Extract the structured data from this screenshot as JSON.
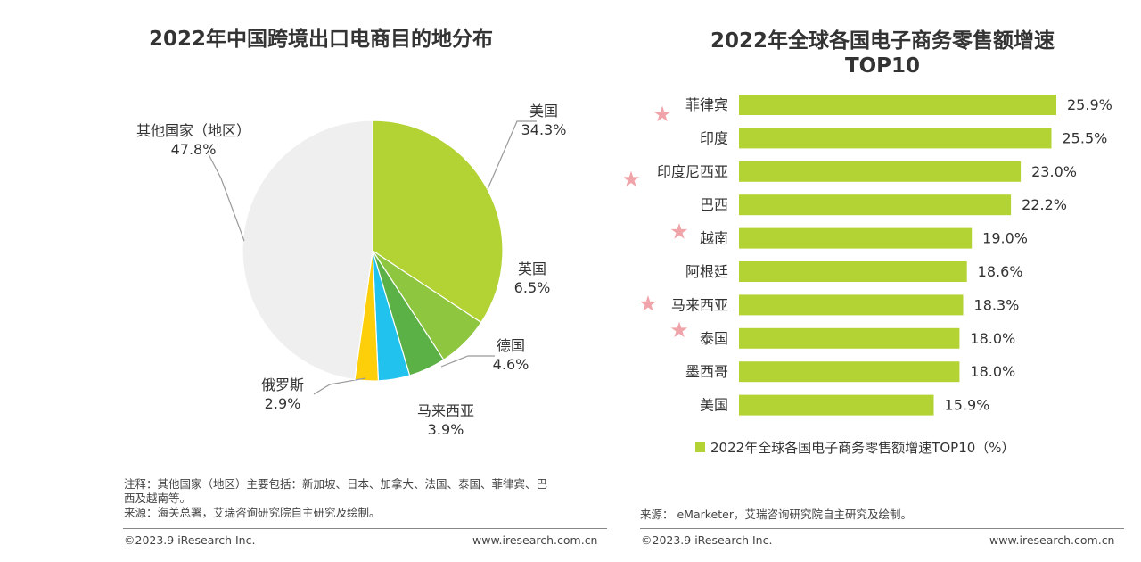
{
  "colors": {
    "bar": "#b3d334",
    "star": "#f0a3a8",
    "leader": "#999999"
  },
  "chart_data": [
    {
      "type": "pie",
      "title": "2022年中国跨境出口电商目的地分布",
      "slices": [
        {
          "label": "美国",
          "value": 34.3,
          "value_label": "34.3%",
          "color": "#b3d334"
        },
        {
          "label": "英国",
          "value": 6.5,
          "value_label": "6.5%",
          "color": "#8ec63f"
        },
        {
          "label": "德国",
          "value": 4.6,
          "value_label": "4.6%",
          "color": "#5bb046"
        },
        {
          "label": "马来西亚",
          "value": 3.9,
          "value_label": "3.9%",
          "color": "#21c3ee"
        },
        {
          "label": "俄罗斯",
          "value": 2.9,
          "value_label": "2.9%",
          "color": "#fccf0a"
        },
        {
          "label": "其他国家（地区）",
          "value": 47.8,
          "value_label": "47.8%",
          "color": "#efefef"
        }
      ]
    },
    {
      "type": "bar",
      "orientation": "horizontal",
      "title_lines": [
        "2022年全球各国电子商务零售额增速",
        "TOP10"
      ],
      "categories": [
        "菲律宾",
        "印度",
        "印度尼西亚",
        "巴西",
        "越南",
        "阿根廷",
        "马来西亚",
        "泰国",
        "墨西哥",
        "美国"
      ],
      "values": [
        25.9,
        25.5,
        23.0,
        22.2,
        19.0,
        18.6,
        18.3,
        18.0,
        18.0,
        15.9
      ],
      "value_labels": [
        "25.9%",
        "25.5%",
        "23.0%",
        "22.2%",
        "19.0%",
        "18.6%",
        "18.3%",
        "18.0%",
        "18.0%",
        "15.9%"
      ],
      "starred": [
        true,
        false,
        true,
        false,
        true,
        false,
        true,
        true,
        false,
        false
      ],
      "star_glyph": "★",
      "xlim": [
        0,
        30
      ],
      "legend": "2022年全球各国电子商务零售额增速TOP10（%）"
    }
  ],
  "left_notes": {
    "note_line1": "注释：其他国家（地区）主要包括：新加坡、日本、加拿大、法国、泰国、菲律宾、巴",
    "note_line2": "西及越南等。",
    "source": "来源：海关总署，艾瑞咨询研究院自主研究及绘制。",
    "copyright": "©2023.9 iResearch Inc.",
    "website": "www.iresearch.com.cn"
  },
  "right_notes": {
    "source": "来源： eMarketer，艾瑞咨询研究院自主研究及绘制。",
    "copyright": "©2023.9 iResearch Inc.",
    "website": "www.iresearch.com.cn"
  }
}
